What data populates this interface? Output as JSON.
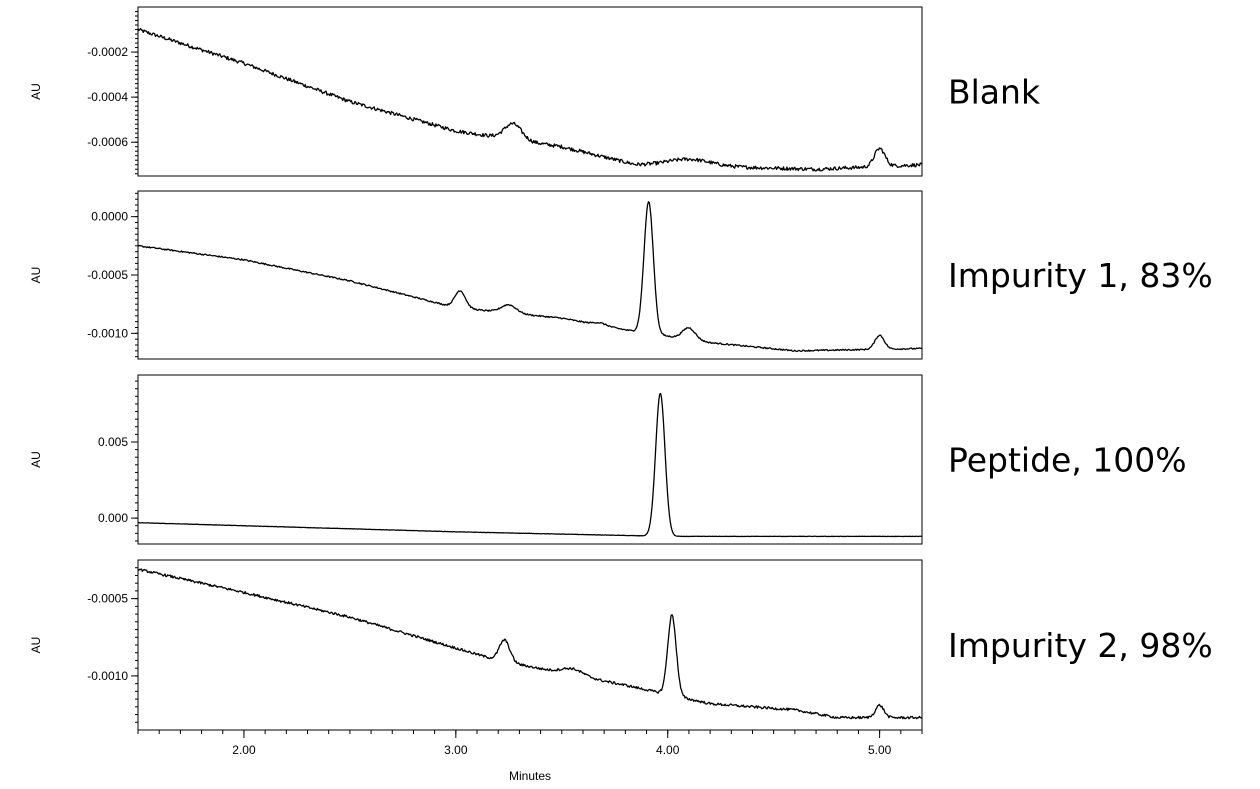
{
  "chart_data": [
    {
      "type": "line",
      "label": "Blank",
      "ylabel": "AU",
      "ylim": [
        -0.00075,
        0.0
      ],
      "yticks": [
        -0.0002,
        -0.0004,
        -0.0006
      ],
      "ytick_labels": [
        "-0.0002",
        "-0.0004",
        "-0.0006"
      ],
      "xlim": [
        1.5,
        5.2
      ],
      "baseline": [
        [
          1.5,
          -0.0001
        ],
        [
          2.0,
          -0.00025
        ],
        [
          2.5,
          -0.00042
        ],
        [
          3.0,
          -0.00055
        ],
        [
          3.5,
          -0.00062
        ],
        [
          3.85,
          -0.0007
        ],
        [
          4.3,
          -0.00071
        ],
        [
          4.7,
          -0.00072
        ],
        [
          5.2,
          -0.0007
        ]
      ],
      "peaks": [
        {
          "x": 3.27,
          "height": 7e-05,
          "width": 0.04
        },
        {
          "x": 4.1,
          "height": 3e-05,
          "width": 0.1
        },
        {
          "x": 5.0,
          "height": 8e-05,
          "width": 0.025
        }
      ],
      "noise": 8e-06
    },
    {
      "type": "line",
      "label": "Impurity 1, 83%",
      "ylabel": "AU",
      "ylim": [
        -0.00122,
        0.00022
      ],
      "yticks": [
        0.0,
        -0.0005,
        -0.001
      ],
      "ytick_labels": [
        "0.0000",
        "-0.0005",
        "-0.0010"
      ],
      "xlim": [
        1.5,
        5.2
      ],
      "baseline": [
        [
          1.5,
          -0.00025
        ],
        [
          2.0,
          -0.00037
        ],
        [
          2.5,
          -0.00055
        ],
        [
          3.0,
          -0.00078
        ],
        [
          3.5,
          -0.00087
        ],
        [
          3.8,
          -0.00097
        ],
        [
          4.2,
          -0.00108
        ],
        [
          4.6,
          -0.00115
        ],
        [
          5.2,
          -0.00113
        ]
      ],
      "peaks": [
        {
          "x": 3.02,
          "height": 0.00015,
          "width": 0.025
        },
        {
          "x": 3.25,
          "height": 7e-05,
          "width": 0.035
        },
        {
          "x": 3.68,
          "height": 2e-05,
          "width": 0.03
        },
        {
          "x": 3.91,
          "height": 0.00113,
          "width": 0.022
        },
        {
          "x": 4.1,
          "height": 0.0001,
          "width": 0.03
        },
        {
          "x": 5.0,
          "height": 0.00012,
          "width": 0.022
        }
      ],
      "noise": 6e-06
    },
    {
      "type": "line",
      "label": "Peptide, 100%",
      "ylabel": "AU",
      "ylim": [
        -0.0017,
        0.0094
      ],
      "yticks": [
        0.005,
        0.0
      ],
      "ytick_labels": [
        "0.005",
        "0.000"
      ],
      "xlim": [
        1.5,
        5.2
      ],
      "baseline": [
        [
          1.5,
          -0.0003
        ],
        [
          3.0,
          -0.0009
        ],
        [
          4.0,
          -0.0012
        ],
        [
          5.2,
          -0.0012
        ]
      ],
      "peaks": [
        {
          "x": 3.965,
          "height": 0.0094,
          "width": 0.022
        }
      ],
      "noise": 1e-05
    },
    {
      "type": "line",
      "label": "Impurity 2, 98%",
      "ylabel": "AU",
      "ylim": [
        -0.00135,
        -0.00025
      ],
      "yticks": [
        -0.0005,
        -0.001
      ],
      "ytick_labels": [
        "-0.0005",
        "-0.0010"
      ],
      "xlim": [
        1.5,
        5.2
      ],
      "baseline": [
        [
          1.5,
          -0.00031
        ],
        [
          2.0,
          -0.00046
        ],
        [
          2.5,
          -0.00062
        ],
        [
          3.0,
          -0.00082
        ],
        [
          3.2,
          -0.0009
        ],
        [
          3.5,
          -0.00098
        ],
        [
          3.8,
          -0.00106
        ],
        [
          4.2,
          -0.00118
        ],
        [
          4.6,
          -0.00122
        ],
        [
          4.8,
          -0.00127
        ],
        [
          5.2,
          -0.00127
        ]
      ],
      "peaks": [
        {
          "x": 3.23,
          "height": 0.00014,
          "width": 0.025
        },
        {
          "x": 3.55,
          "height": 4e-05,
          "width": 0.05
        },
        {
          "x": 4.02,
          "height": 0.00052,
          "width": 0.02
        },
        {
          "x": 5.0,
          "height": 8e-05,
          "width": 0.02
        }
      ],
      "noise": 8e-06
    }
  ],
  "x_axis": {
    "label": "Minutes",
    "ticks": [
      2.0,
      3.0,
      4.0,
      5.0
    ],
    "tick_labels": [
      "2.00",
      "3.00",
      "4.00",
      "5.00"
    ],
    "minor_step": 0.1
  },
  "colors": {
    "trace": "#000000",
    "frame": "#000000",
    "background": "#ffffff"
  }
}
